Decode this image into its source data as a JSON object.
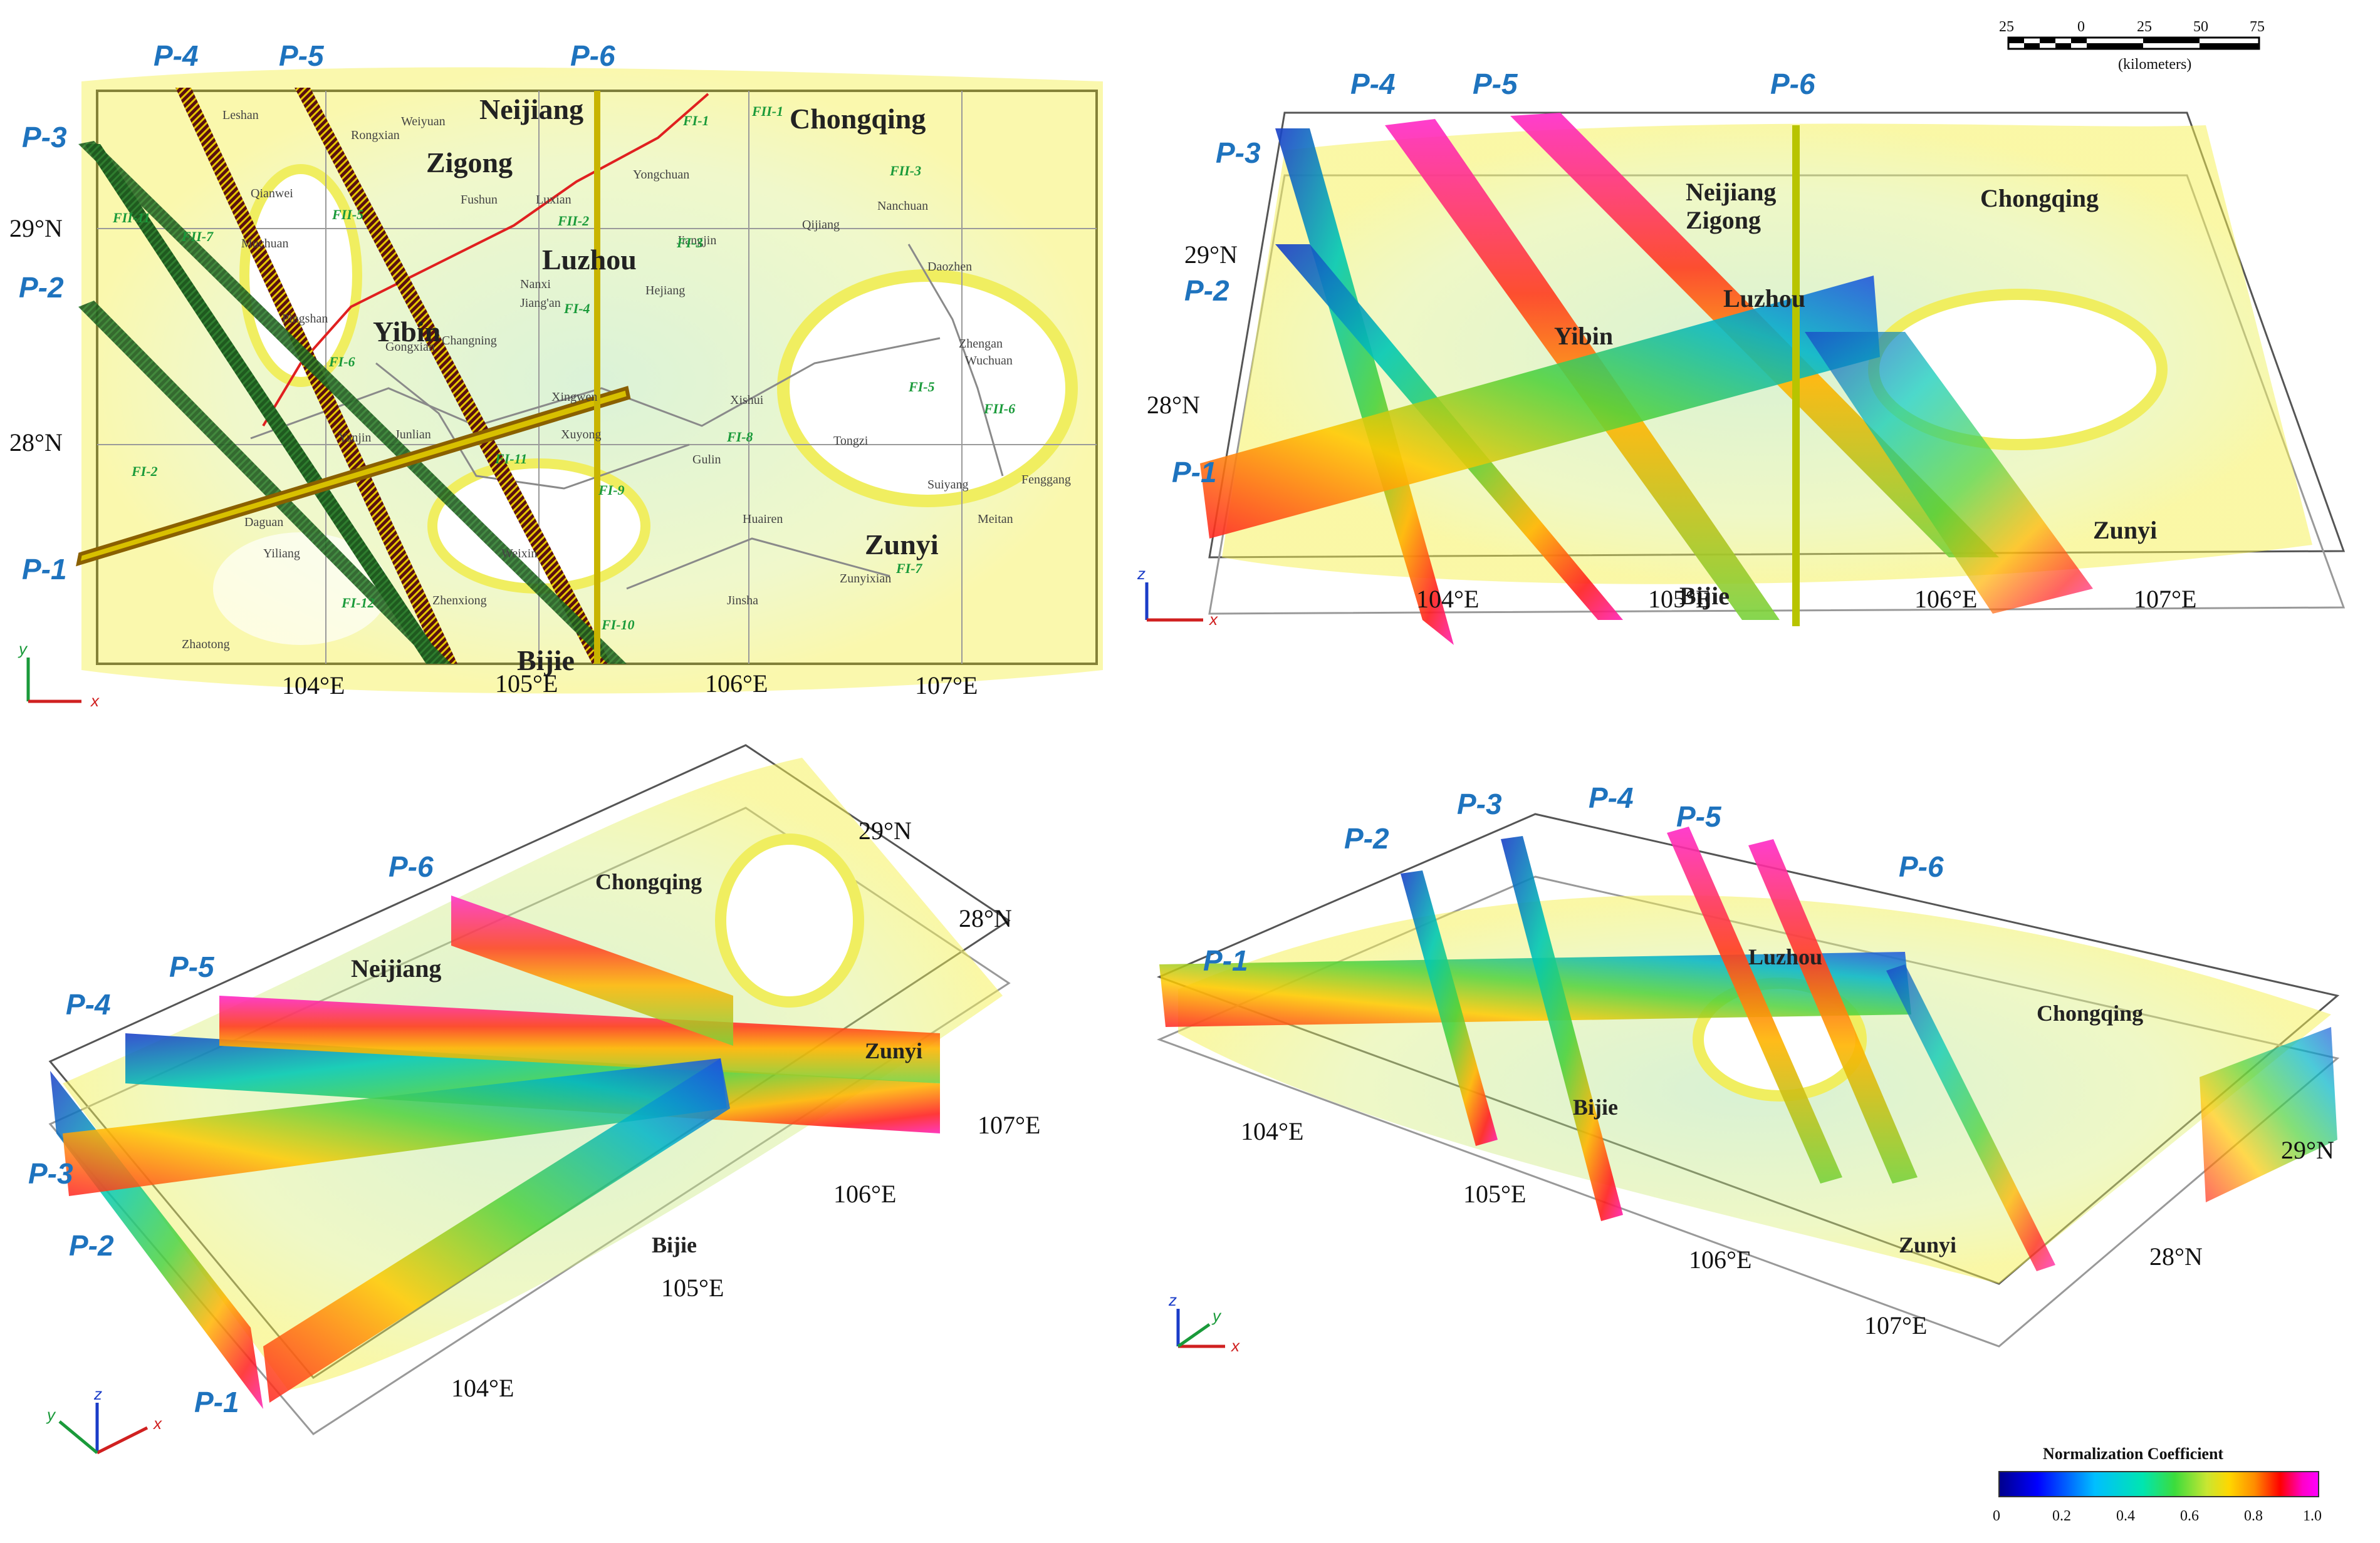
{
  "panels": {
    "top_left": {
      "profiles": [
        "P-1",
        "P-2",
        "P-3",
        "P-4",
        "P-5",
        "P-6"
      ],
      "lat_labels": [
        "29°N",
        "28°N"
      ],
      "lon_labels": [
        "104°E",
        "105°E",
        "106°E",
        "107°E"
      ],
      "cities_major": [
        "Neijiang",
        "Zigong",
        "Chongqing",
        "Luzhou",
        "Yibin",
        "Zunyi",
        "Bijie"
      ],
      "cities_minor": [
        "Leshan",
        "Weiyuan",
        "Rongxian",
        "Qianwei",
        "Muchuan",
        "Fushun",
        "Luxian",
        "Yongchuan",
        "Jiangjin",
        "Hejiang",
        "Nanxi",
        "Jiang'an",
        "Changning",
        "Pingshan",
        "Gongxian",
        "Xingwen",
        "Xuyong",
        "Junlian",
        "Yanjin",
        "Daguan",
        "Yiliang",
        "Weixin",
        "Zhenxiong",
        "Zhaotong",
        "Gulin",
        "Tongzi",
        "Xishui",
        "Huairen",
        "Jinsha",
        "Zunyixian",
        "Meitan",
        "Suiyang",
        "Fenggang",
        "Zhengan",
        "Wuchuan",
        "Daozhen",
        "Nanchuan",
        "Qijiang"
      ],
      "faults": [
        "FI-1",
        "FI-2",
        "FI-3",
        "FI-4",
        "FI-5",
        "FI-6",
        "FI-7",
        "FI-8",
        "FI-9",
        "FI-10",
        "FI-11",
        "FI-12",
        "FII-1",
        "FII-2",
        "FII-3",
        "FII-5",
        "FII-6",
        "FII-7",
        "FII-11"
      ],
      "axes": {
        "x": "x",
        "y": "y"
      }
    },
    "top_right": {
      "profiles": [
        "P-1",
        "P-2",
        "P-3",
        "P-4",
        "P-5",
        "P-6"
      ],
      "lat_labels": [
        "29°N",
        "28°N"
      ],
      "lon_labels": [
        "104°E",
        "105°E",
        "106°E",
        "107°E"
      ],
      "cities_major": [
        "Neijiang",
        "Zigong",
        "Chongqing",
        "Luzhou",
        "Yibin",
        "Zunyi",
        "Bijie"
      ],
      "axes": {
        "x": "x",
        "z": "z"
      }
    },
    "bottom_left": {
      "profiles": [
        "P-1",
        "P-2",
        "P-3",
        "P-4",
        "P-5",
        "P-6"
      ],
      "lat_labels": [
        "29°N",
        "28°N"
      ],
      "lon_labels": [
        "104°E",
        "105°E",
        "106°E",
        "107°E"
      ],
      "cities_major": [
        "Neijiang",
        "Chongqing",
        "Zunyi",
        "Bijie"
      ],
      "axes": {
        "x": "x",
        "y": "y",
        "z": "z"
      }
    },
    "bottom_right": {
      "profiles": [
        "P-1",
        "P-2",
        "P-3",
        "P-4",
        "P-5",
        "P-6"
      ],
      "lat_labels": [
        "29°N",
        "28°N"
      ],
      "lon_labels": [
        "104°E",
        "105°E",
        "106°E",
        "107°E"
      ],
      "cities_major": [
        "Luzhou",
        "Chongqing",
        "Zunyi",
        "Bijie"
      ],
      "axes": {
        "x": "x",
        "y": "y",
        "z": "z"
      }
    }
  },
  "scale_bar": {
    "ticks": [
      "25",
      "0",
      "25",
      "50",
      "75"
    ],
    "unit": "(kilometers)"
  },
  "colorbar": {
    "title": "Normalization Coefficient",
    "ticks": [
      "0",
      "0.2",
      "0.4",
      "0.6",
      "0.8",
      "1.0"
    ],
    "stops": [
      "#00008b",
      "#0000ff",
      "#00bfff",
      "#00e5b0",
      "#3cdc3c",
      "#c8e632",
      "#ffd700",
      "#ff8c00",
      "#ff0000",
      "#ff00c8",
      "#ff00ff"
    ]
  }
}
